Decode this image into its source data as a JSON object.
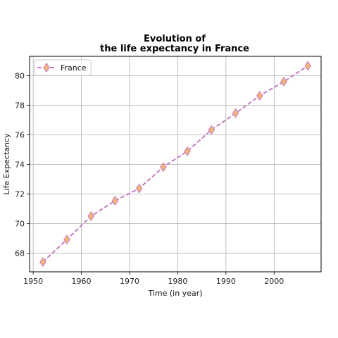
{
  "chart_data": {
    "type": "line",
    "title_lines": [
      "Evolution of",
      "the life expectancy in France"
    ],
    "xlabel": "Time (in year)",
    "ylabel": "Life Expectancy",
    "xlim": [
      1949.25,
      2009.75
    ],
    "ylim": [
      66.75,
      81.3
    ],
    "x_ticks": [
      1950,
      1960,
      1970,
      1980,
      1990,
      2000
    ],
    "y_ticks": [
      68,
      70,
      72,
      74,
      76,
      78,
      80
    ],
    "grid": true,
    "legend_position": "top-left",
    "series": [
      {
        "name": "France",
        "line_color": "#bf7fbf",
        "line_style": "dashed",
        "marker": "thin-diamond",
        "marker_fill": "#f5b37a",
        "marker_edge": "#c47fc0",
        "x": [
          1952,
          1957,
          1962,
          1967,
          1972,
          1977,
          1982,
          1987,
          1992,
          1997,
          2002,
          2007
        ],
        "values": [
          67.41,
          68.93,
          70.51,
          71.55,
          72.38,
          73.83,
          74.89,
          76.34,
          77.46,
          78.64,
          79.59,
          80.66
        ]
      }
    ]
  }
}
